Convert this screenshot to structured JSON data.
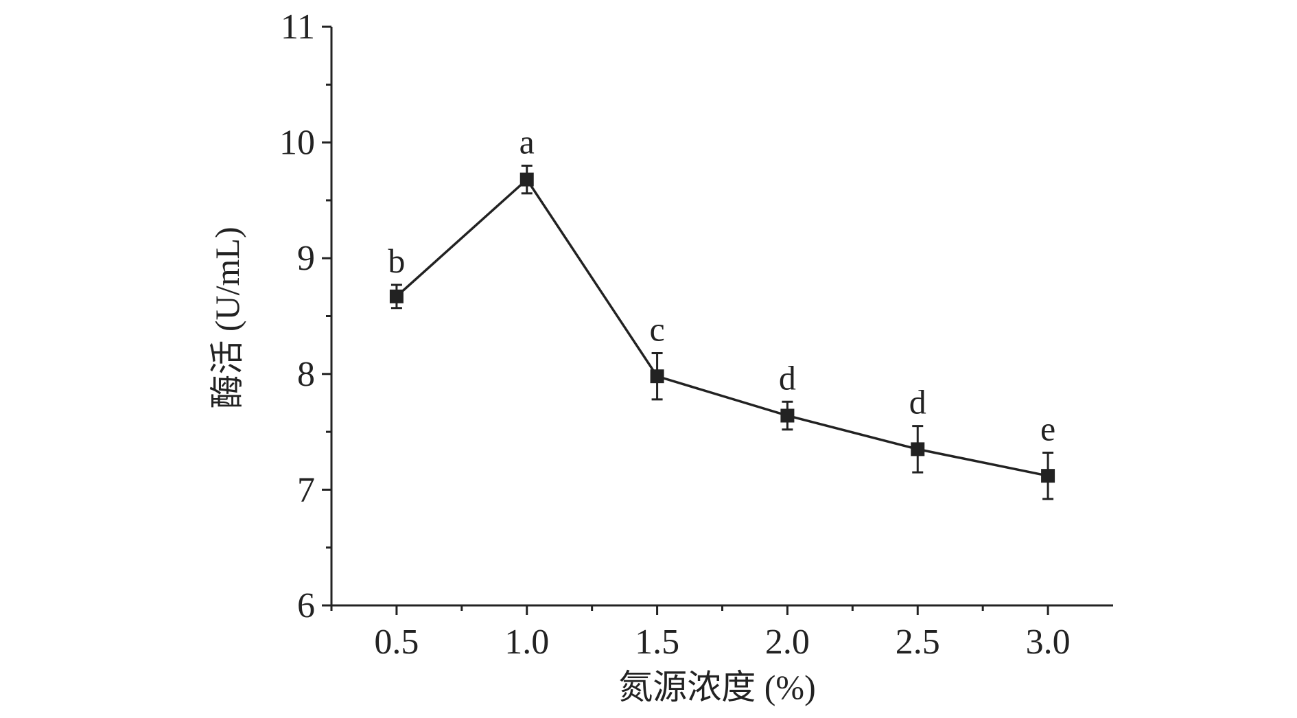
{
  "chart_data": {
    "type": "line",
    "xlabel": "氮源浓度 (%)",
    "ylabel": "酶活 (U/mL)",
    "x": [
      0.5,
      1.0,
      1.5,
      2.0,
      2.5,
      3.0
    ],
    "xticks": [
      "0.5",
      "1.0",
      "1.5",
      "2.0",
      "2.5",
      "3.0"
    ],
    "xlim": [
      0.25,
      3.25
    ],
    "ylim": [
      6,
      11
    ],
    "yticks": [
      "6",
      "7",
      "8",
      "9",
      "10",
      "11"
    ],
    "series": [
      {
        "values": [
          8.67,
          9.68,
          7.98,
          7.64,
          7.35,
          7.12
        ],
        "errors": [
          0.1,
          0.12,
          0.2,
          0.12,
          0.2,
          0.2
        ],
        "labels": [
          "b",
          "a",
          "c",
          "d",
          "d",
          "e"
        ],
        "marker": "square",
        "color": "#222222"
      }
    ],
    "grid": false,
    "legend": "none"
  }
}
